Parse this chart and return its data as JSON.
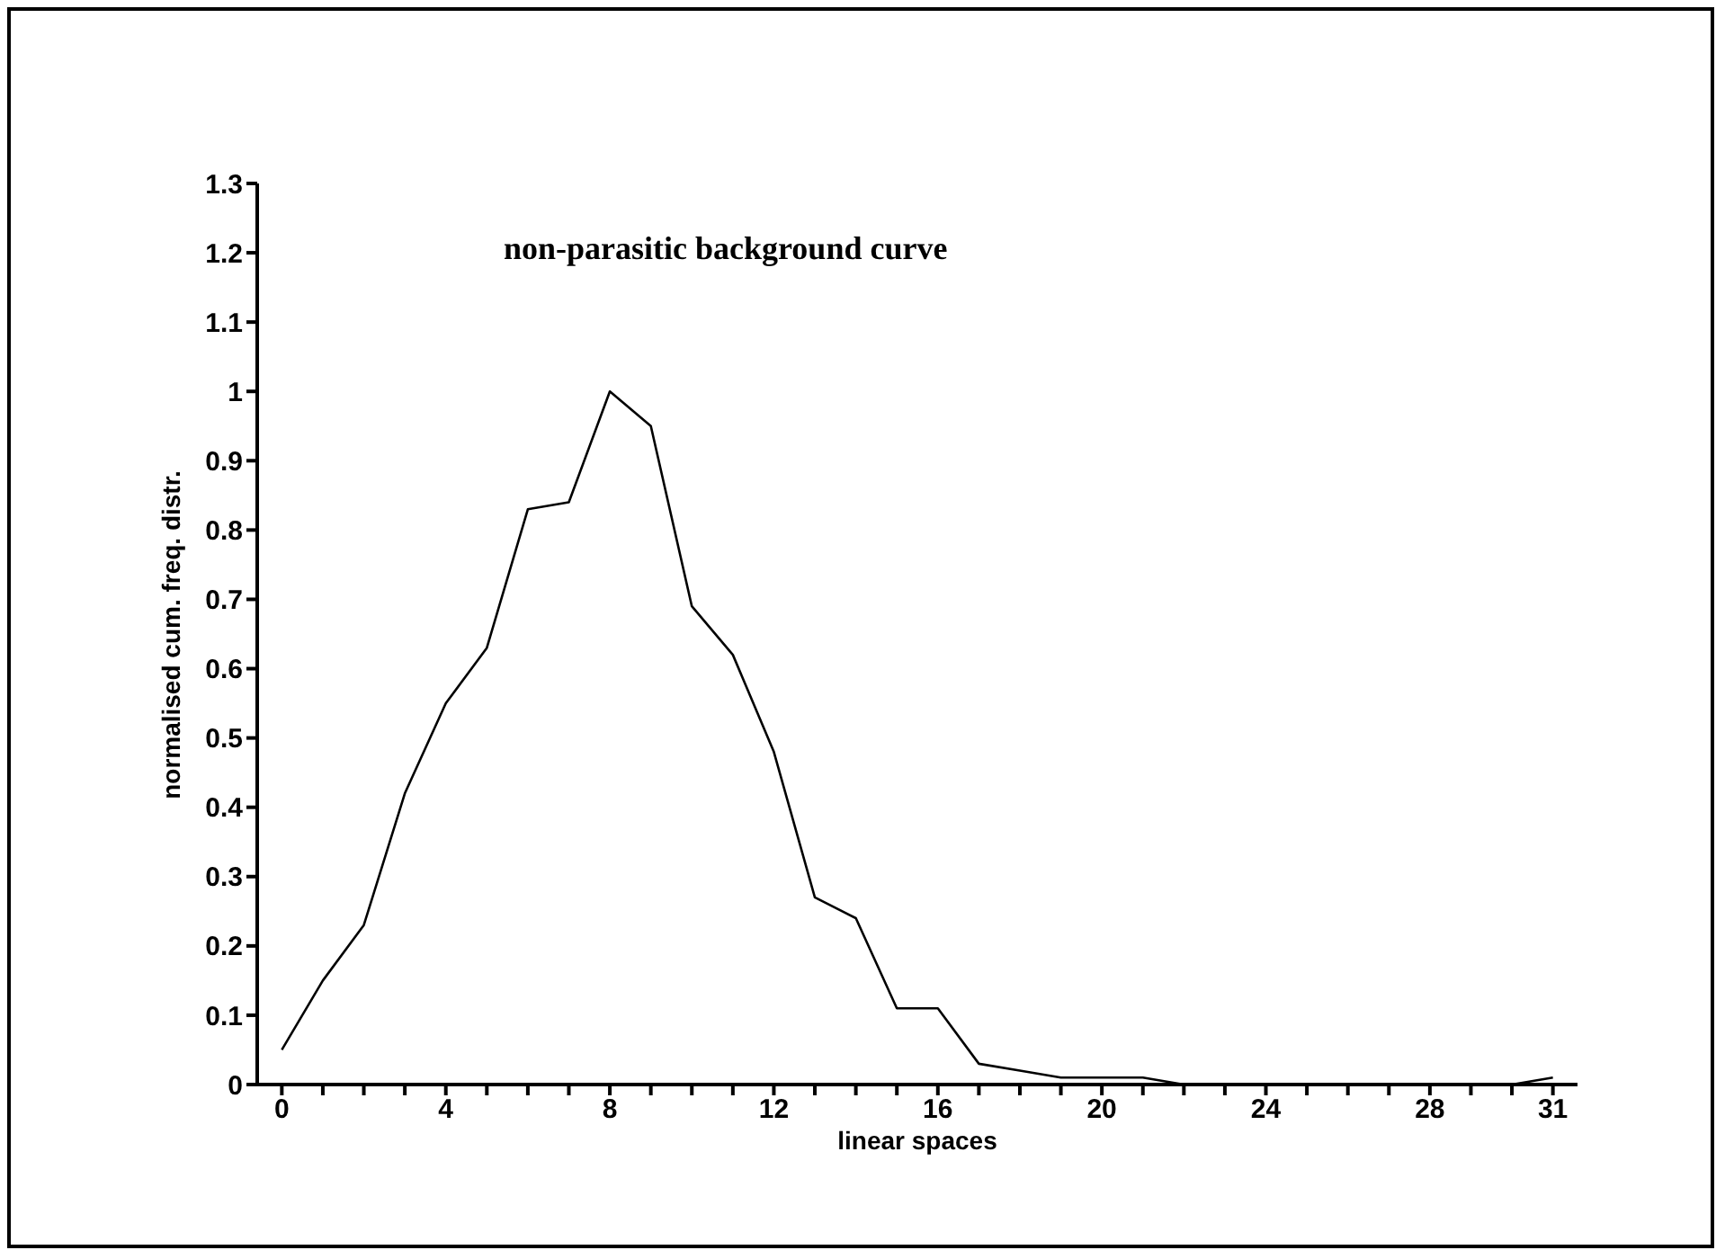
{
  "chart_data": {
    "type": "line",
    "title": "non-parasitic background curve",
    "xlabel": "linear spaces",
    "ylabel": "normalised cum. freq. distr.",
    "x": [
      0,
      1,
      2,
      3,
      4,
      5,
      6,
      7,
      8,
      9,
      10,
      11,
      12,
      13,
      14,
      15,
      16,
      17,
      18,
      19,
      20,
      21,
      22,
      23,
      24,
      25,
      26,
      27,
      28,
      29,
      30,
      31
    ],
    "series": [
      {
        "color": "#000000",
        "values": [
          0.05,
          0.15,
          0.23,
          0.42,
          0.55,
          0.63,
          0.83,
          0.84,
          1.0,
          0.95,
          0.69,
          0.62,
          0.48,
          0.27,
          0.24,
          0.11,
          0.11,
          0.03,
          0.02,
          0.01,
          0.01,
          0.01,
          0,
          0,
          0,
          0,
          0,
          0,
          0,
          0,
          0,
          0.01
        ]
      }
    ],
    "xlim": [
      -0.6,
      31.6
    ],
    "xticks": [
      0,
      {
        "value": 1,
        "label": null
      },
      {
        "value": 2,
        "label": null
      },
      {
        "value": 3,
        "label": null
      },
      4,
      {
        "value": 5,
        "label": null
      },
      {
        "value": 6,
        "label": null
      },
      {
        "value": 7,
        "label": null
      },
      8,
      {
        "value": 9,
        "label": null
      },
      {
        "value": 10,
        "label": null
      },
      {
        "value": 11,
        "label": null
      },
      12,
      {
        "value": 13,
        "label": null
      },
      {
        "value": 14,
        "label": null
      },
      {
        "value": 15,
        "label": null
      },
      16,
      {
        "value": 17,
        "label": null
      },
      {
        "value": 18,
        "label": null
      },
      {
        "value": 19,
        "label": null
      },
      20,
      {
        "value": 21,
        "label": null
      },
      {
        "value": 22,
        "label": null
      },
      {
        "value": 23,
        "label": null
      },
      24,
      {
        "value": 25,
        "label": null
      },
      {
        "value": 26,
        "label": null
      },
      {
        "value": 27,
        "label": null
      },
      28,
      {
        "value": 29,
        "label": null
      },
      {
        "value": 30,
        "label": null
      },
      31
    ],
    "ylim": [
      0,
      1.3
    ],
    "yticks": [
      0,
      0.1,
      0.2,
      0.3,
      0.4,
      0.5,
      0.6,
      0.7,
      0.8,
      0.9,
      1,
      1.1,
      1.2,
      1.3
    ],
    "grid": false,
    "legend": false,
    "marker": "none",
    "line_style": "solid"
  }
}
